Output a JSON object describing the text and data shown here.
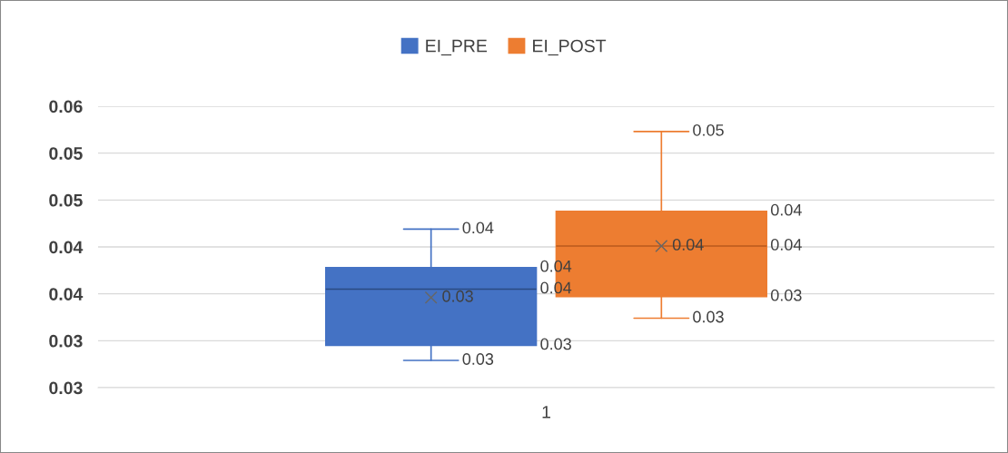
{
  "chart_data": {
    "type": "box",
    "categories": [
      "1"
    ],
    "series": [
      {
        "name": "EI_PRE",
        "color": "#4472c4",
        "boxes": [
          {
            "low": 0.0279,
            "q1": 0.0295,
            "median": 0.0355,
            "q3": 0.0378,
            "high": 0.0419,
            "mean": 0.0346
          }
        ]
      },
      {
        "name": "EI_POST",
        "color": "#ed7d31",
        "boxes": [
          {
            "low": 0.0324,
            "q1": 0.0347,
            "median": 0.0401,
            "q3": 0.0438,
            "high": 0.0523,
            "mean": 0.0401
          }
        ]
      }
    ],
    "annotations": [
      "0.03",
      "0.03",
      "0.04",
      "0.04",
      "0.04",
      "0.03",
      "0.03",
      "0.03",
      "0.04",
      "0.04",
      "0.05",
      "0.04"
    ],
    "ylim": [
      0.025,
      0.055
    ],
    "yticks": [
      {
        "value": 0.025,
        "label": "0.03"
      },
      {
        "value": 0.03,
        "label": "0.03"
      },
      {
        "value": 0.035,
        "label": "0.04"
      },
      {
        "value": 0.04,
        "label": "0.04"
      },
      {
        "value": 0.045,
        "label": "0.05"
      },
      {
        "value": 0.05,
        "label": "0.05"
      },
      {
        "value": 0.055,
        "label": "0.06"
      }
    ],
    "grid": "y",
    "legend": "top",
    "marker": "cross"
  }
}
